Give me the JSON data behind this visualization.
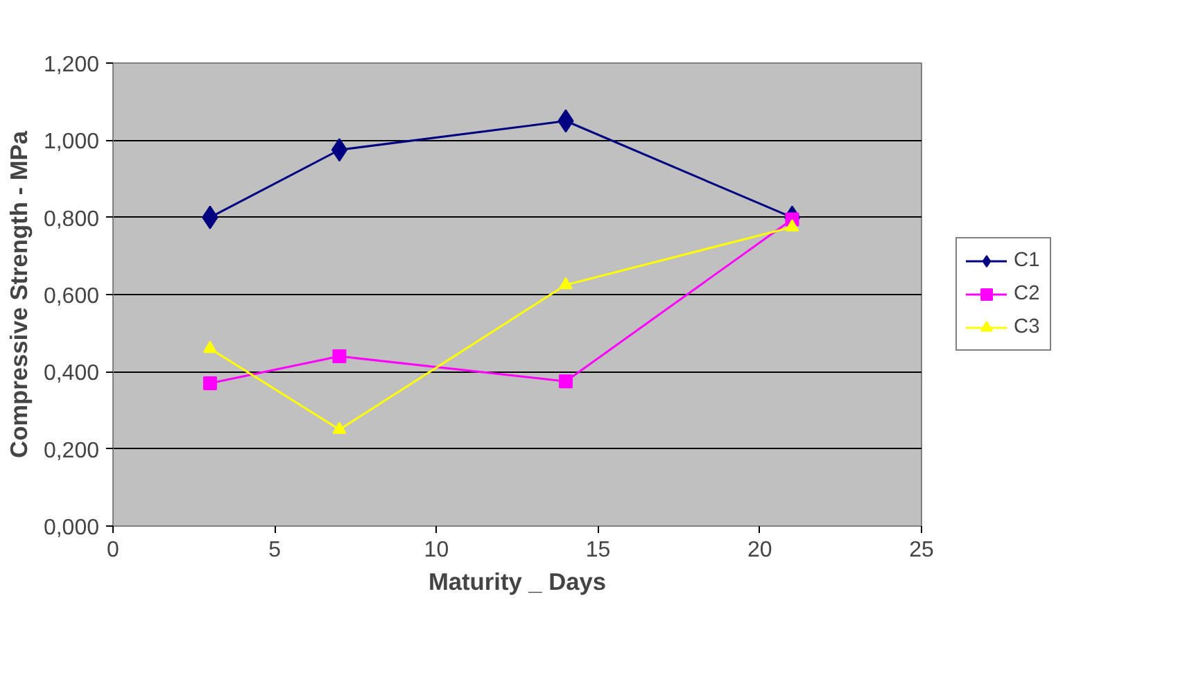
{
  "chart_data": {
    "type": "line",
    "xlabel": "Maturity _ Days",
    "ylabel": "Compressive Strength - MPa",
    "x": [
      3,
      7,
      14,
      21
    ],
    "series": [
      {
        "name": "C1",
        "color": "#000080",
        "marker": "diamond",
        "values": [
          0.8,
          0.975,
          1.05,
          0.8
        ]
      },
      {
        "name": "C2",
        "color": "#ff00ff",
        "marker": "square",
        "values": [
          0.37,
          0.44,
          0.375,
          0.795
        ]
      },
      {
        "name": "C3",
        "color": "#ffff00",
        "marker": "triangle",
        "values": [
          0.46,
          0.25,
          0.625,
          0.775
        ]
      }
    ],
    "xlim": [
      0,
      25
    ],
    "xticks": [
      0,
      5,
      10,
      15,
      20,
      25
    ],
    "ylim": [
      0,
      1.2
    ],
    "yticks": [
      {
        "value": 0,
        "label": "0,000"
      },
      {
        "value": 0.2,
        "label": "0,200"
      },
      {
        "value": 0.4,
        "label": "0,400"
      },
      {
        "value": 0.6,
        "label": "0,600"
      },
      {
        "value": 0.8,
        "label": "0,800"
      },
      {
        "value": 1.0,
        "label": "1,000"
      },
      {
        "value": 1.2,
        "label": "1,200"
      }
    ],
    "grid": "y",
    "legend": "right",
    "line_style": "solid"
  }
}
